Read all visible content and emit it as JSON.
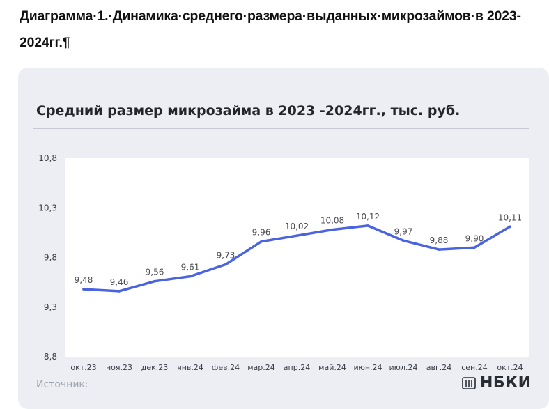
{
  "document": {
    "heading": "Диаграмма·1.·Динамика·среднего·размера·выданных·микрозаймов·в 2023-2024гг.¶"
  },
  "chart": {
    "title": "Средний размер микрозайма в 2023 -2024гг., тыс. руб.",
    "source_label": "Источник:",
    "brand": "НБКИ",
    "brand_icon": "nbki-logo-icon",
    "line_color": "#4a63e0"
  },
  "chart_data": {
    "type": "line",
    "title": "Средний размер микрозайма в 2023 -2024гг., тыс. руб.",
    "categories": [
      "окт.23",
      "ноя.23",
      "дек.23",
      "янв.24",
      "фев.24",
      "мар.24",
      "апр.24",
      "май.24",
      "июн.24",
      "июл.24",
      "авг.24",
      "сен.24",
      "окт.24"
    ],
    "series": [
      {
        "values": [
          9.48,
          9.46,
          9.56,
          9.61,
          9.73,
          9.96,
          10.02,
          10.08,
          10.12,
          9.97,
          9.88,
          9.9,
          10.11
        ],
        "labels": [
          "9,48",
          "9,46",
          "9,56",
          "9,61",
          "9,73",
          "9,96",
          "10,02",
          "10,08",
          "10,12",
          "9,97",
          "9,88",
          "9,90",
          "10,11"
        ]
      }
    ],
    "y_ticks": [
      10.8,
      10.3,
      9.8,
      9.3,
      8.8
    ],
    "y_tick_labels": [
      "10,8",
      "10,3",
      "9,8",
      "9,3",
      "8,8"
    ],
    "ylim": [
      8.8,
      10.8
    ],
    "grid": false,
    "legend": "none"
  }
}
